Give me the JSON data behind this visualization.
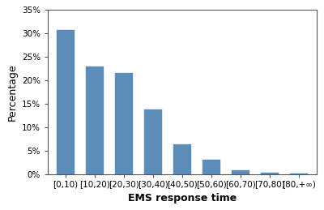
{
  "categories": [
    "[0,10)",
    "[10,20)",
    "[20,30)",
    "[30,40)",
    "[40,50)",
    "[50,60)",
    "[60,70)",
    "[70,80)",
    "[80,+∞)"
  ],
  "values": [
    0.308,
    0.23,
    0.216,
    0.139,
    0.064,
    0.032,
    0.009,
    0.004,
    0.002
  ],
  "bar_color": "#5b8db8",
  "bar_edgecolor": "#5b8db8",
  "xlabel": "EMS response time",
  "ylabel": "Percentage",
  "ylim": [
    0,
    0.35
  ],
  "yticks": [
    0.0,
    0.05,
    0.1,
    0.15,
    0.2,
    0.25,
    0.3,
    0.35
  ],
  "background_color": "#ffffff",
  "xlabel_fontsize": 9,
  "ylabel_fontsize": 9,
  "tick_fontsize": 7.5,
  "bar_width": 0.6,
  "figsize": [
    4.0,
    2.59
  ],
  "dpi": 100
}
